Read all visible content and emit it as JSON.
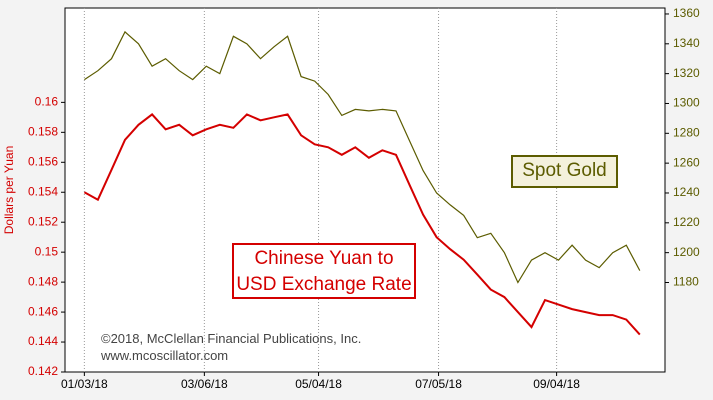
{
  "chart_data": {
    "type": "line",
    "y_label": "Dollars per Yuan",
    "annotations": [
      "©2018, McClellan Financial Publications, Inc.",
      "www.mcoscillator.com"
    ],
    "x": [
      "2018-01-03",
      "2018-01-10",
      "2018-01-17",
      "2018-01-24",
      "2018-01-31",
      "2018-02-07",
      "2018-02-14",
      "2018-02-21",
      "2018-02-28",
      "2018-03-07",
      "2018-03-14",
      "2018-03-21",
      "2018-03-28",
      "2018-04-04",
      "2018-04-11",
      "2018-04-18",
      "2018-04-25",
      "2018-05-02",
      "2018-05-09",
      "2018-05-16",
      "2018-05-23",
      "2018-05-30",
      "2018-06-06",
      "2018-06-13",
      "2018-06-20",
      "2018-06-27",
      "2018-07-04",
      "2018-07-11",
      "2018-07-18",
      "2018-07-25",
      "2018-08-01",
      "2018-08-08",
      "2018-08-15",
      "2018-08-22",
      "2018-08-29",
      "2018-09-05",
      "2018-09-12",
      "2018-09-19",
      "2018-09-26",
      "2018-10-03",
      "2018-10-10",
      "2018-10-17"
    ],
    "xlim": [
      "2017-12-24",
      "2018-10-30"
    ],
    "xticks": [
      {
        "value": "2018-01-03",
        "label": "01/03/18"
      },
      {
        "value": "2018-03-06",
        "label": "03/06/18"
      },
      {
        "value": "2018-05-04",
        "label": "05/04/18"
      },
      {
        "value": "2018-07-05",
        "label": "07/05/18"
      },
      {
        "value": "2018-09-04",
        "label": "09/04/18"
      }
    ],
    "ylim": [
      0.142,
      0.1663
    ],
    "yticks": [
      0.142,
      0.144,
      0.146,
      0.148,
      {
        "value": 0.15,
        "label": "0.15"
      },
      0.152,
      0.154,
      0.156,
      0.158,
      {
        "value": 0.16,
        "label": "0.16"
      }
    ],
    "y2lim": [
      1120,
      1364
    ],
    "y2ticks": [
      1180,
      1200,
      1220,
      1240,
      1260,
      1280,
      1300,
      1320,
      1340,
      1360
    ],
    "x_grid": true,
    "series": [
      {
        "name": "Chinese Yuan to USD Exchange Rate",
        "color": "#d40000",
        "values": [
          0.154,
          0.1535,
          0.1555,
          0.1575,
          0.1585,
          0.1592,
          0.1582,
          0.1585,
          0.1578,
          0.1582,
          0.1585,
          0.1583,
          0.1592,
          0.1588,
          0.159,
          0.1592,
          0.1578,
          0.1572,
          0.157,
          0.1565,
          0.157,
          0.1563,
          0.1568,
          0.1565,
          0.1545,
          0.1525,
          0.151,
          0.1502,
          0.1495,
          0.1485,
          0.1475,
          0.147,
          0.146,
          0.145,
          0.1468,
          0.1465,
          0.1462,
          0.146,
          0.1458,
          0.1458,
          0.1455,
          0.1445
        ]
      },
      {
        "name": "Spot Gold",
        "color": "#5c5c00",
        "axis": "y2",
        "values": [
          1316,
          1322,
          1330,
          1348,
          1340,
          1325,
          1330,
          1322,
          1316,
          1325,
          1320,
          1345,
          1340,
          1330,
          1338,
          1345,
          1318,
          1315,
          1306,
          1292,
          1296,
          1295,
          1296,
          1295,
          1275,
          1255,
          1240,
          1232,
          1225,
          1210,
          1213,
          1200,
          1180,
          1195,
          1200,
          1195,
          1205,
          1195,
          1190,
          1200,
          1205,
          1188
        ]
      }
    ]
  }
}
